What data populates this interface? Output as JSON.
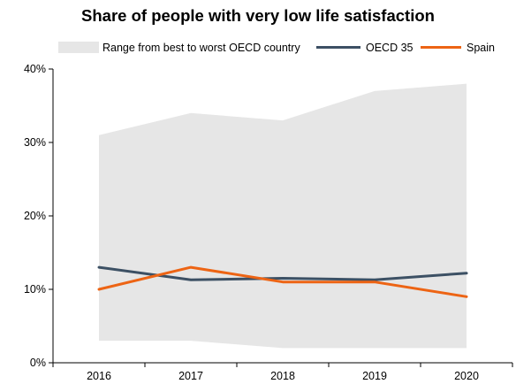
{
  "chart_data": {
    "type": "line",
    "title": "Share of people with very low life satisfaction",
    "x": [
      "2016",
      "2017",
      "2018",
      "2019",
      "2020"
    ],
    "y_ticks": [
      "0%",
      "10%",
      "20%",
      "30%",
      "40%"
    ],
    "ylim": [
      0,
      40
    ],
    "y_unit": "%",
    "grid": false,
    "legend_position": "top",
    "range_band": {
      "name": "Range from best to worst OECD country",
      "upper": [
        31,
        34,
        33,
        37,
        38
      ],
      "lower": [
        3,
        3,
        2,
        2,
        2
      ],
      "color": "#e6e6e6"
    },
    "series": [
      {
        "name": "OECD 35",
        "values": [
          13,
          11.3,
          11.5,
          11.3,
          12.2
        ],
        "color": "#3c5064"
      },
      {
        "name": "Spain",
        "values": [
          10,
          13,
          11,
          11,
          9
        ],
        "color": "#ed6414"
      }
    ]
  }
}
